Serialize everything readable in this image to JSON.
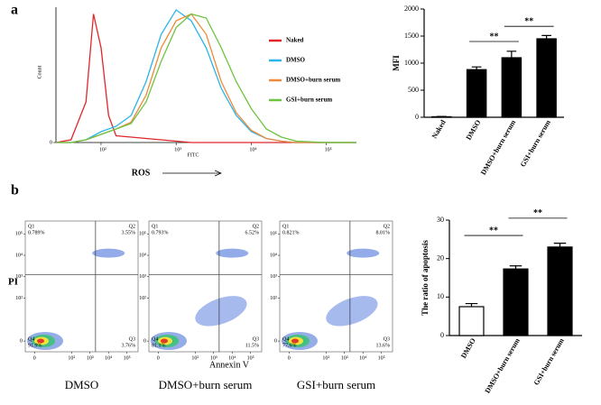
{
  "panels": [
    "a",
    "b"
  ],
  "chart_data": [
    {
      "type": "line",
      "xlabel": "FITC",
      "ylabel": "Count",
      "caption": "ROS",
      "xlim": [
        1.4,
        5.4
      ],
      "ylim": [
        0,
        100
      ],
      "xticks": [
        {
          "value": 2,
          "label": "10²"
        },
        {
          "value": 3,
          "label": "10³"
        },
        {
          "value": 4,
          "label": "10⁴"
        },
        {
          "value": 5,
          "label": "10⁵"
        }
      ],
      "yticks": [
        0
      ],
      "x": [
        1.4,
        1.6,
        1.8,
        1.9,
        2.0,
        2.1,
        2.2,
        2.4,
        2.6,
        2.8,
        3.0,
        3.2,
        3.4,
        3.6,
        3.8,
        4.0,
        4.2,
        4.4,
        4.6,
        5.0,
        5.4
      ],
      "series": [
        {
          "name": "Naked",
          "color": "#e0262b",
          "values": [
            0,
            2,
            30,
            95,
            70,
            20,
            5,
            4,
            3,
            2,
            1,
            0,
            0,
            0,
            0,
            0,
            0,
            0,
            0,
            0,
            0
          ]
        },
        {
          "name": "DMSO",
          "color": "#2bb5e8",
          "values": [
            0,
            0,
            2,
            5,
            8,
            10,
            12,
            20,
            45,
            80,
            98,
            90,
            70,
            40,
            20,
            8,
            3,
            1,
            0,
            0,
            0
          ]
        },
        {
          "name": "DMSO+burn serum",
          "color": "#ee8a3a",
          "values": [
            0,
            0,
            2,
            4,
            6,
            8,
            10,
            15,
            35,
            70,
            90,
            95,
            80,
            45,
            22,
            9,
            3,
            1,
            0,
            0,
            0
          ]
        },
        {
          "name": "GSI+burn serum",
          "color": "#6cc440",
          "values": [
            0,
            0,
            2,
            4,
            6,
            8,
            10,
            14,
            30,
            60,
            85,
            95,
            92,
            70,
            45,
            25,
            10,
            4,
            1,
            0,
            0
          ]
        }
      ]
    },
    {
      "type": "bar",
      "ylabel": "MFI",
      "categories": [
        "Naked",
        "DMSO",
        "DMSO+burn serum",
        "GSI+burn serum"
      ],
      "values": [
        10,
        880,
        1100,
        1450
      ],
      "errors": [
        5,
        50,
        120,
        60
      ],
      "colors": [
        "#000000",
        "#000000",
        "#000000",
        "#000000"
      ],
      "ylim": [
        0,
        2000
      ],
      "yticks": [
        0,
        500,
        1000,
        1500,
        2000
      ],
      "annotations": [
        {
          "text": "**",
          "from": 1,
          "to": 2,
          "y": 1400
        },
        {
          "text": "**",
          "from": 2,
          "to": 3,
          "y": 1680
        }
      ]
    },
    {
      "type": "flow",
      "xlabel": "Annexin V",
      "ylabel": "PI",
      "xlim": [
        -0.5,
        5.6
      ],
      "ylim": [
        -0.5,
        5.6
      ],
      "xticks": [
        {
          "value": 0,
          "label": "0"
        },
        {
          "value": 2,
          "label": "10²"
        },
        {
          "value": 3,
          "label": "10³"
        },
        {
          "value": 4,
          "label": "10⁴"
        },
        {
          "value": 5,
          "label": "10⁵"
        }
      ],
      "yticks": [
        {
          "value": 0,
          "label": "0"
        },
        {
          "value": 2,
          "label": "10²"
        },
        {
          "value": 3,
          "label": "10³"
        },
        {
          "value": 4,
          "label": "10⁴"
        },
        {
          "value": 5,
          "label": "10⁵"
        }
      ],
      "gates": [
        3.3,
        3.1
      ],
      "plots": [
        {
          "name": "DMSO",
          "quadrants": [
            {
              "name": "Q1",
              "value": 0.789,
              "value_label": "0.789%"
            },
            {
              "name": "Q2",
              "value": 3.55,
              "value_label": "3.55%"
            },
            {
              "name": "Q3",
              "value": 3.76,
              "value_label": "3.76%"
            },
            {
              "name": "Q4",
              "value": 91.9,
              "value_label": "91.9%"
            }
          ]
        },
        {
          "name": "DMSO+burn serum",
          "quadrants": [
            {
              "name": "Q1",
              "value": 0.793,
              "value_label": "0.793%"
            },
            {
              "name": "Q2",
              "value": 6.52,
              "value_label": "6.52%"
            },
            {
              "name": "Q3",
              "value": 11.5,
              "value_label": "11.5%"
            },
            {
              "name": "Q4",
              "value": 81.1,
              "value_label": "81.1%"
            }
          ]
        },
        {
          "name": "GSI+burn serum",
          "quadrants": [
            {
              "name": "Q1",
              "value": 0.821,
              "value_label": "0.821%"
            },
            {
              "name": "Q2",
              "value": 8.01,
              "value_label": "8.01%"
            },
            {
              "name": "Q3",
              "value": 13.6,
              "value_label": "13.6%"
            },
            {
              "name": "Q4",
              "value": 77.6,
              "value_label": "77.6%"
            }
          ]
        }
      ]
    },
    {
      "type": "bar",
      "ylabel": "The ratio of apoptosis",
      "categories": [
        "DMSO",
        "DMSO+burn serum",
        "GSI+burn serum"
      ],
      "values": [
        7.5,
        17.3,
        23
      ],
      "errors": [
        0.8,
        0.8,
        1.0
      ],
      "colors": [
        "#ffffff",
        "#000000",
        "#000000"
      ],
      "ylim": [
        0,
        30
      ],
      "yticks": [
        0,
        10,
        20,
        30
      ],
      "annotations": [
        {
          "text": "**",
          "from": 0,
          "to": 1,
          "y": 26
        },
        {
          "text": "**",
          "from": 1,
          "to": 2,
          "y": 30.5
        }
      ]
    }
  ]
}
